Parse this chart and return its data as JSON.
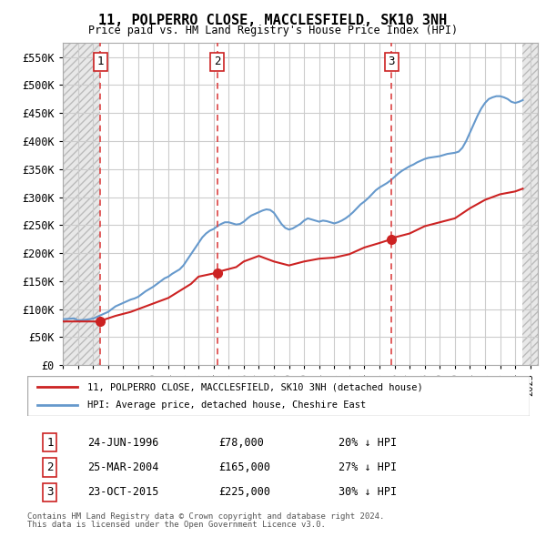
{
  "title": "11, POLPERRO CLOSE, MACCLESFIELD, SK10 3NH",
  "subtitle": "Price paid vs. HM Land Registry's House Price Index (HPI)",
  "ylabel_ticks": [
    "£0",
    "£50K",
    "£100K",
    "£150K",
    "£200K",
    "£250K",
    "£300K",
    "£350K",
    "£400K",
    "£450K",
    "£500K",
    "£550K"
  ],
  "ytick_values": [
    0,
    50000,
    100000,
    150000,
    200000,
    250000,
    300000,
    350000,
    400000,
    450000,
    500000,
    550000
  ],
  "ylim": [
    0,
    575000
  ],
  "xlim_left": 1994.0,
  "xlim_right": 2025.5,
  "transactions": [
    {
      "num": 1,
      "year": 1996.48,
      "price": 78000,
      "date": "24-JUN-1996",
      "pct": "20%",
      "dir": "↓"
    },
    {
      "num": 2,
      "year": 2004.23,
      "price": 165000,
      "date": "25-MAR-2004",
      "pct": "27%",
      "dir": "↓"
    },
    {
      "num": 3,
      "year": 2015.81,
      "price": 225000,
      "date": "23-OCT-2015",
      "pct": "30%",
      "dir": "↓"
    }
  ],
  "hpi_color": "#6699cc",
  "price_color": "#cc2222",
  "vline_color": "#dd4444",
  "dot_color": "#cc2222",
  "background_hatch_color": "#dddddd",
  "grid_color": "#cccccc",
  "legend_line1": "11, POLPERRO CLOSE, MACCLESFIELD, SK10 3NH (detached house)",
  "legend_line2": "HPI: Average price, detached house, Cheshire East",
  "footer1": "Contains HM Land Registry data © Crown copyright and database right 2024.",
  "footer2": "This data is licensed under the Open Government Licence v3.0.",
  "hpi_data_x": [
    1994,
    1994.25,
    1994.5,
    1994.75,
    1995,
    1995.25,
    1995.5,
    1995.75,
    1996,
    1996.25,
    1996.5,
    1996.75,
    1997,
    1997.25,
    1997.5,
    1997.75,
    1998,
    1998.25,
    1998.5,
    1998.75,
    1999,
    1999.25,
    1999.5,
    1999.75,
    2000,
    2000.25,
    2000.5,
    2000.75,
    2001,
    2001.25,
    2001.5,
    2001.75,
    2002,
    2002.25,
    2002.5,
    2002.75,
    2003,
    2003.25,
    2003.5,
    2003.75,
    2004,
    2004.25,
    2004.5,
    2004.75,
    2005,
    2005.25,
    2005.5,
    2005.75,
    2006,
    2006.25,
    2006.5,
    2006.75,
    2007,
    2007.25,
    2007.5,
    2007.75,
    2008,
    2008.25,
    2008.5,
    2008.75,
    2009,
    2009.25,
    2009.5,
    2009.75,
    2010,
    2010.25,
    2010.5,
    2010.75,
    2011,
    2011.25,
    2011.5,
    2011.75,
    2012,
    2012.25,
    2012.5,
    2012.75,
    2013,
    2013.25,
    2013.5,
    2013.75,
    2014,
    2014.25,
    2014.5,
    2014.75,
    2015,
    2015.25,
    2015.5,
    2015.75,
    2016,
    2016.25,
    2016.5,
    2016.75,
    2017,
    2017.25,
    2017.5,
    2017.75,
    2018,
    2018.25,
    2018.5,
    2018.75,
    2019,
    2019.25,
    2019.5,
    2019.75,
    2020,
    2020.25,
    2020.5,
    2020.75,
    2021,
    2021.25,
    2021.5,
    2021.75,
    2022,
    2022.25,
    2022.5,
    2022.75,
    2023,
    2023.25,
    2023.5,
    2023.75,
    2024,
    2024.25,
    2024.5
  ],
  "hpi_data_y": [
    82000,
    82500,
    83000,
    83500,
    80000,
    80500,
    81000,
    82000,
    83000,
    86000,
    89000,
    92000,
    95000,
    100000,
    105000,
    108000,
    111000,
    114000,
    117000,
    119000,
    122000,
    127000,
    132000,
    136000,
    140000,
    145000,
    150000,
    155000,
    158000,
    163000,
    167000,
    171000,
    178000,
    188000,
    198000,
    208000,
    218000,
    228000,
    235000,
    240000,
    243000,
    248000,
    252000,
    255000,
    255000,
    253000,
    251000,
    252000,
    256000,
    262000,
    267000,
    270000,
    273000,
    276000,
    278000,
    277000,
    272000,
    262000,
    252000,
    245000,
    242000,
    244000,
    248000,
    252000,
    258000,
    262000,
    260000,
    258000,
    256000,
    258000,
    257000,
    255000,
    253000,
    255000,
    258000,
    262000,
    267000,
    273000,
    280000,
    287000,
    292000,
    298000,
    305000,
    312000,
    317000,
    321000,
    325000,
    330000,
    336000,
    342000,
    347000,
    351000,
    355000,
    358000,
    362000,
    365000,
    368000,
    370000,
    371000,
    372000,
    373000,
    375000,
    377000,
    378000,
    379000,
    381000,
    388000,
    400000,
    415000,
    430000,
    445000,
    458000,
    468000,
    475000,
    478000,
    480000,
    480000,
    478000,
    475000,
    470000,
    468000,
    470000,
    473000
  ],
  "price_data_x": [
    1994.0,
    1996.48,
    1996.48,
    1996.6,
    1997.5,
    1998.5,
    1999.5,
    2001.0,
    2002.5,
    2003.0,
    2004.23,
    2004.23,
    2004.5,
    2005.5,
    2006.0,
    2007.0,
    2008.0,
    2009.0,
    2010.0,
    2011.0,
    2012.0,
    2013.0,
    2014.0,
    2015.0,
    2015.81,
    2015.81,
    2016.0,
    2017.0,
    2018.0,
    2019.0,
    2020.0,
    2021.0,
    2022.0,
    2023.0,
    2024.0,
    2024.5
  ],
  "price_data_y": [
    78000,
    78000,
    78000,
    80000,
    88000,
    95000,
    105000,
    120000,
    145000,
    158000,
    165000,
    165000,
    168000,
    175000,
    185000,
    195000,
    185000,
    178000,
    185000,
    190000,
    192000,
    198000,
    210000,
    218000,
    225000,
    225000,
    228000,
    235000,
    248000,
    255000,
    262000,
    280000,
    295000,
    305000,
    310000,
    315000
  ]
}
